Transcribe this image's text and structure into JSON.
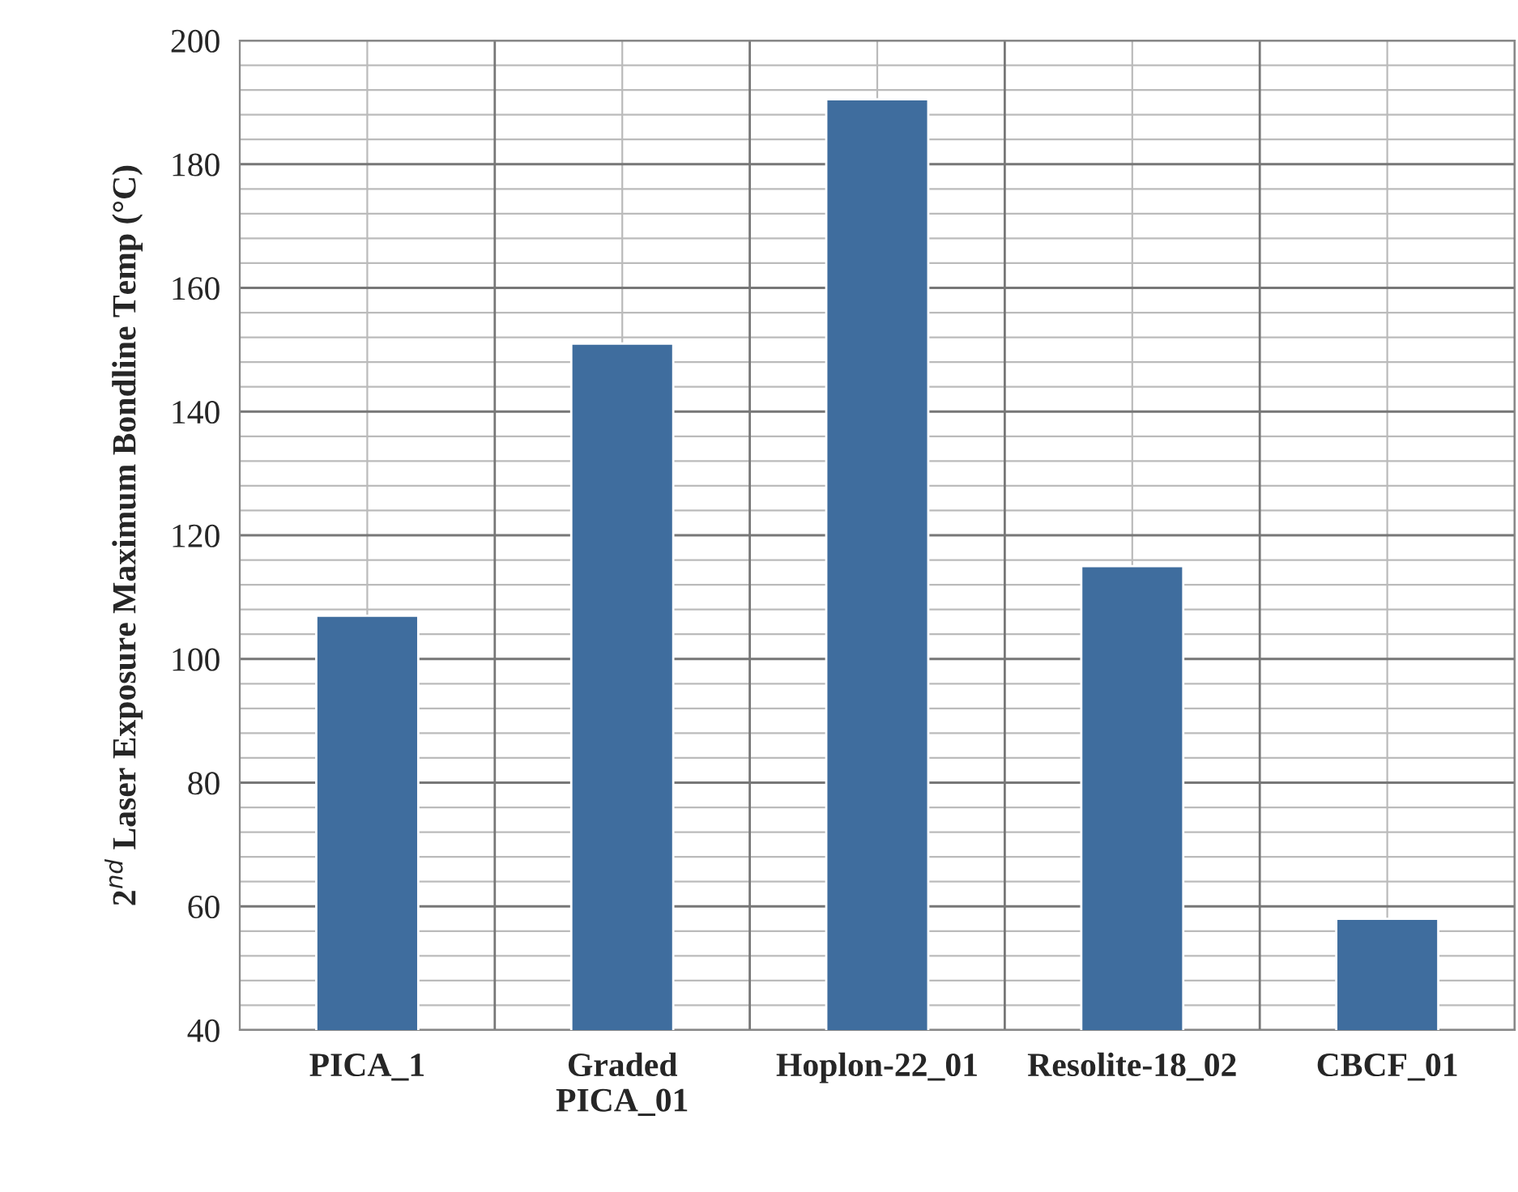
{
  "chart_data": {
    "type": "bar",
    "ylabel": "2$^{nd}$ Laser Exposure Maximum Bondline Temp (°C)",
    "categories": [
      "PICA_1",
      "Graded\nPICA_01",
      "Hoplon-22_01",
      "Resolite-18_02",
      "CBCF_01"
    ],
    "values": [
      107,
      151,
      190.5,
      115,
      58
    ],
    "color": "#3f6d9e",
    "ylim": [
      40,
      200
    ],
    "yticks": [
      40,
      60,
      80,
      100,
      120,
      140,
      160,
      180,
      200
    ],
    "grid": true,
    "legend": false
  }
}
